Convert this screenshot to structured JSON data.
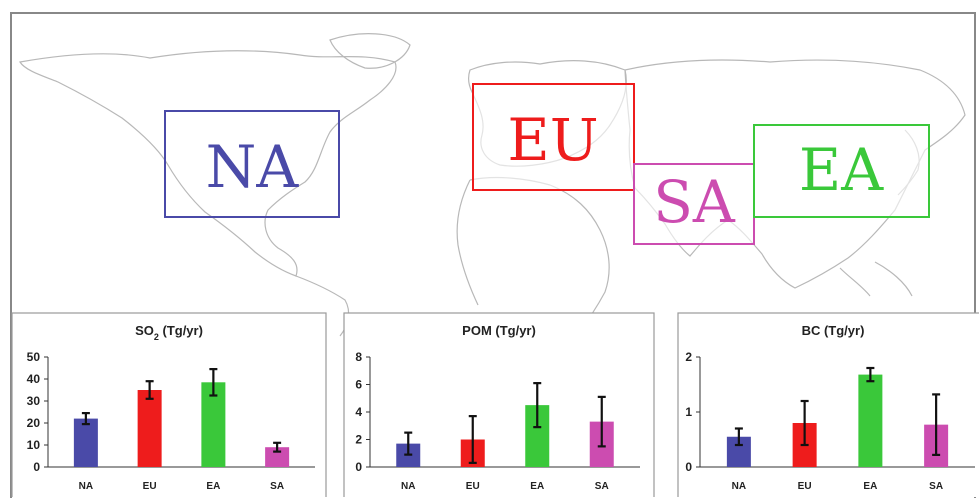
{
  "colors": {
    "NA": "#4a4aa8",
    "EU": "#ee1c1c",
    "EA": "#3ac83a",
    "SA": "#cc4cb0",
    "map_outline": "#b8b8b8"
  },
  "map": {
    "regions": [
      {
        "key": "NA",
        "label": "NA"
      },
      {
        "key": "EU",
        "label": "EU"
      },
      {
        "key": "SA",
        "label": "SA"
      },
      {
        "key": "EA",
        "label": "EA"
      }
    ]
  },
  "chart_data": [
    {
      "type": "bar",
      "title_main": "SO",
      "title_sub": "2",
      "title_rest": " (Tg/yr)",
      "categories": [
        "NA",
        "EU",
        "EA",
        "SA"
      ],
      "values": [
        22,
        35,
        38.5,
        9
      ],
      "errors": [
        2.5,
        4,
        6,
        2
      ],
      "ylim": [
        0,
        50
      ],
      "yticks": [
        0,
        10,
        20,
        30,
        40,
        50
      ]
    },
    {
      "type": "bar",
      "title_main": "POM (Tg/yr)",
      "title_sub": "",
      "title_rest": "",
      "categories": [
        "NA",
        "EU",
        "EA",
        "SA"
      ],
      "values": [
        1.7,
        2.0,
        4.5,
        3.3
      ],
      "errors": [
        0.8,
        1.7,
        1.6,
        1.8
      ],
      "ylim": [
        0,
        8
      ],
      "yticks": [
        0,
        2,
        4,
        6,
        8
      ]
    },
    {
      "type": "bar",
      "title_main": "BC (Tg/yr)",
      "title_sub": "",
      "title_rest": "",
      "categories": [
        "NA",
        "EU",
        "EA",
        "SA"
      ],
      "values": [
        0.55,
        0.8,
        1.68,
        0.77
      ],
      "errors": [
        0.15,
        0.4,
        0.12,
        0.55
      ],
      "ylim": [
        0,
        2
      ],
      "yticks": [
        0,
        1,
        2
      ]
    }
  ]
}
